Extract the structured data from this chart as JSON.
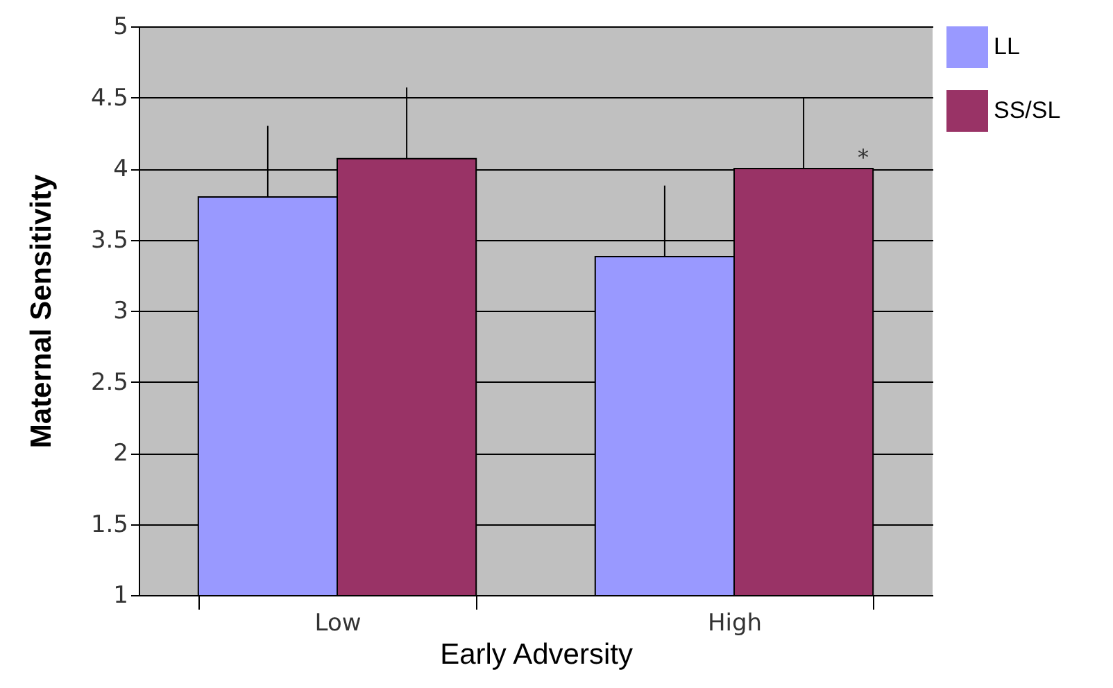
{
  "chart_data": {
    "type": "bar",
    "xlabel": "Early Adversity",
    "ylabel": "Maternal Sensitivity",
    "categories": [
      "Low",
      "High"
    ],
    "series": [
      {
        "name": "LL",
        "color": "#9999ff",
        "values": [
          3.8,
          3.38
        ],
        "errors": [
          [
            3.8,
            4.3
          ],
          [
            3.38,
            3.88
          ]
        ]
      },
      {
        "name": "SS/SL",
        "color": "#993366",
        "values": [
          4.07,
          4.0
        ],
        "errors": [
          [
            4.07,
            4.57
          ],
          [
            4.0,
            4.5
          ]
        ]
      }
    ],
    "ylim": [
      1,
      5
    ],
    "yticks": [
      1,
      1.5,
      2,
      2.5,
      3,
      3.5,
      4,
      4.5,
      5
    ],
    "grid": "y",
    "legend": "right",
    "annotations": [
      "*"
    ]
  }
}
